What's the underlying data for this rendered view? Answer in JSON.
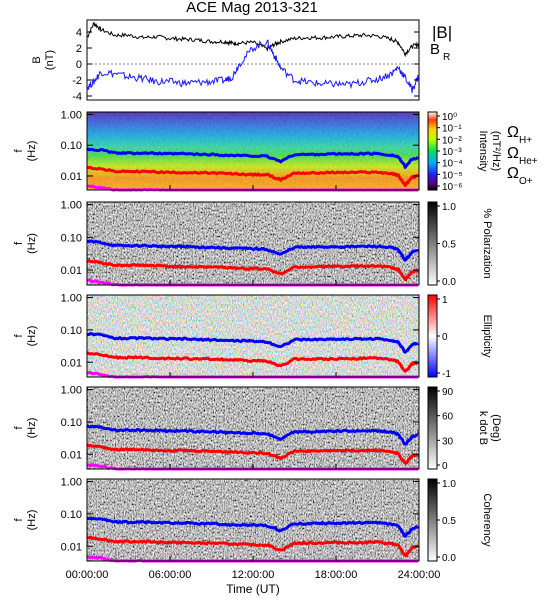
{
  "title": "ACE Mag 2013-321",
  "xlabel": "Time (UT)",
  "xticks": [
    "00:00:00",
    "06:00:00",
    "12:00:00",
    "18:00:00",
    "24:00:00"
  ],
  "panel_b": {
    "ylabel_line1": "B",
    "ylabel_line2": "(nT)",
    "yticks": [
      "4",
      "2",
      "0",
      "-2",
      "-4"
    ],
    "legend_b": "|B|",
    "legend_br": "B",
    "legend_br_sub": "R"
  },
  "spectral_ylabel_line1": "f",
  "spectral_ylabel_line2": "(Hz)",
  "spectral_yticks": [
    "1.00",
    "0.10",
    "0.01"
  ],
  "panel_intensity": {
    "cbar_label_a": "Intensity",
    "cbar_label_b": "(nT²/Hz)",
    "cbar_ticks": [
      "10⁰",
      "10⁻¹",
      "10⁻²",
      "10⁻³",
      "10⁻⁴",
      "10⁻⁵",
      "10⁻⁶"
    ],
    "legend_h": "Ω",
    "legend_h_sub": "H+",
    "legend_he": "Ω",
    "legend_he_sub": "He+",
    "legend_o": "Ω",
    "legend_o_sub": "O+"
  },
  "panel_polarization": {
    "cbar_label": "% Polarization",
    "cbar_ticks": [
      "1.0",
      "0.5",
      "0.0"
    ]
  },
  "panel_ellipticity": {
    "cbar_label": "Ellipticity",
    "cbar_ticks": [
      "1",
      "0",
      "-1"
    ]
  },
  "panel_kdotb": {
    "cbar_label_a": "k dot B",
    "cbar_label_b": "(Deg)",
    "cbar_ticks": [
      "90",
      "60",
      "30",
      "0"
    ]
  },
  "panel_coherency": {
    "cbar_label": "Coherency",
    "cbar_ticks": [
      "1.0",
      "0.5",
      "0.0"
    ]
  },
  "colors": {
    "b_total": "#000000",
    "b_r": "#1a1aff",
    "omega_h": "#0000ff",
    "omega_he": "#ff0000",
    "omega_o": "#ff00ff"
  },
  "chart_data": [
    {
      "type": "line",
      "title": "ACE Mag 2013-321",
      "xlabel": "Time (UT)",
      "ylabel": "B (nT)",
      "xlim_hours": [
        0,
        24
      ],
      "ylim": [
        -4.5,
        5.5
      ],
      "x_hours": [
        0,
        0.5,
        1,
        2,
        3,
        4,
        5,
        6,
        7,
        8,
        9,
        10,
        10.5,
        11,
        12,
        13,
        13.5,
        14,
        15,
        16,
        17,
        18,
        19,
        20,
        21,
        22,
        22.5,
        23,
        23.5,
        24
      ],
      "series": [
        {
          "name": "|B|",
          "values": [
            3.3,
            5.1,
            4.3,
            3.6,
            3.6,
            3.3,
            3.4,
            3.2,
            3.1,
            3.0,
            2.8,
            2.8,
            2.6,
            2.6,
            2.7,
            1.9,
            2.4,
            2.8,
            3.2,
            3.3,
            3.3,
            3.4,
            3.5,
            3.6,
            3.5,
            3.1,
            2.7,
            1.3,
            2.2,
            2.5
          ]
        },
        {
          "name": "B_R",
          "values": [
            -3.0,
            -2.2,
            -1.0,
            -1.2,
            -1.6,
            -1.8,
            -2.2,
            -2.2,
            -2.4,
            -2.3,
            -2.2,
            -2.0,
            -1.6,
            0.0,
            2.0,
            2.8,
            1.2,
            -0.5,
            -2.0,
            -2.3,
            -2.5,
            -2.5,
            -2.6,
            -2.2,
            -1.9,
            -1.2,
            -0.4,
            -1.7,
            -3.2,
            -1.4
          ]
        }
      ]
    },
    {
      "type": "heatmap",
      "ylabel": "f (Hz)",
      "yscale": "log",
      "ylim": [
        0.0035,
        1.2
      ],
      "xlim_hours": [
        0,
        24
      ],
      "panels": [
        "Intensity (nT²/Hz)",
        "% Polarization",
        "Ellipticity",
        "k dot B (Deg)",
        "Coherency"
      ],
      "x_hours": [
        0,
        1,
        2,
        3,
        4,
        5,
        6,
        7,
        8,
        9,
        10,
        11,
        12,
        13,
        14,
        15,
        16,
        17,
        18,
        19,
        20,
        21,
        22,
        22.5,
        23,
        23.5,
        24
      ],
      "series": [
        {
          "name": "ΩH+",
          "values": [
            0.075,
            0.07,
            0.056,
            0.055,
            0.056,
            0.054,
            0.052,
            0.053,
            0.05,
            0.05,
            0.047,
            0.046,
            0.045,
            0.043,
            0.03,
            0.05,
            0.05,
            0.051,
            0.052,
            0.052,
            0.053,
            0.053,
            0.048,
            0.042,
            0.02,
            0.035,
            0.04
          ]
        },
        {
          "name": "ΩHe+",
          "values": [
            0.019,
            0.017,
            0.014,
            0.014,
            0.014,
            0.0135,
            0.013,
            0.013,
            0.0125,
            0.0125,
            0.012,
            0.0115,
            0.011,
            0.011,
            0.0075,
            0.0125,
            0.0125,
            0.0127,
            0.013,
            0.013,
            0.0132,
            0.0133,
            0.012,
            0.0105,
            0.005,
            0.009,
            0.01
          ]
        },
        {
          "name": "ΩO+",
          "values": [
            0.0047,
            0.0043,
            0.0035,
            0.0034,
            0.0035,
            0.0034,
            0.0033,
            0.0033,
            0.0031,
            0.0031,
            0.003,
            0.0029,
            0.0028,
            0.0027,
            0.0019,
            0.0031,
            0.0031,
            0.0032,
            0.0033,
            0.0033,
            0.0033,
            0.0033,
            0.003,
            0.0026,
            0.0013,
            0.0023,
            0.0025
          ]
        }
      ]
    }
  ]
}
